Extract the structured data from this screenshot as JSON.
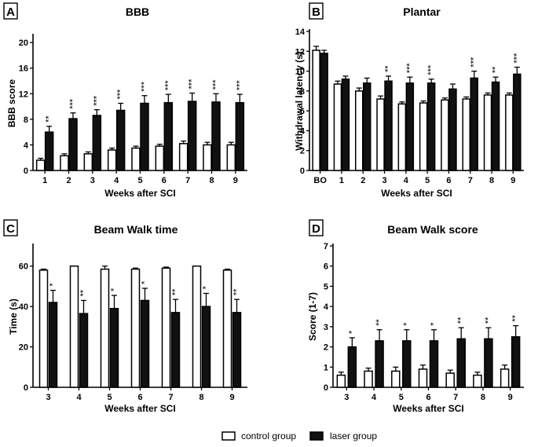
{
  "legend": {
    "control_label": "control group",
    "laser_label": "laser group"
  },
  "colors": {
    "control_fill": "#ffffff",
    "laser_fill": "#111111",
    "stroke": "#000000"
  },
  "chart_data": [
    {
      "panel": "A",
      "type": "bar",
      "title": "BBB",
      "xlabel": "Weeks after SCI",
      "ylabel": "BBB score",
      "ylim": [
        0,
        21
      ],
      "yticks": [
        0,
        4,
        8,
        12,
        16,
        20
      ],
      "categories": [
        "1",
        "2",
        "3",
        "4",
        "5",
        "6",
        "7",
        "8",
        "9"
      ],
      "series": [
        {
          "name": "control group",
          "values": [
            1.6,
            2.3,
            2.6,
            3.2,
            3.5,
            3.8,
            4.2,
            4.0,
            4.0
          ],
          "errors": [
            0.3,
            0.3,
            0.3,
            0.3,
            0.3,
            0.3,
            0.4,
            0.4,
            0.4
          ]
        },
        {
          "name": "laser group",
          "values": [
            6.0,
            8.1,
            8.6,
            9.4,
            10.5,
            10.6,
            10.8,
            10.7,
            10.6
          ],
          "errors": [
            0.9,
            0.9,
            0.9,
            1.1,
            1.2,
            1.3,
            1.3,
            1.3,
            1.3
          ]
        }
      ],
      "significance": [
        "**",
        "***",
        "***",
        "***",
        "***",
        "***",
        "***",
        "***",
        "***"
      ]
    },
    {
      "panel": "B",
      "type": "bar",
      "title": "Plantar",
      "xlabel": "Weeks after SCI",
      "ylabel": "Withdrawal latency (s)",
      "ylim": [
        0,
        14
      ],
      "yticks": [
        0,
        2,
        4,
        6,
        8,
        10,
        12,
        14
      ],
      "categories": [
        "BO",
        "1",
        "2",
        "3",
        "4",
        "5",
        "6",
        "7",
        "8",
        "9"
      ],
      "series": [
        {
          "name": "control group",
          "values": [
            12.1,
            8.7,
            8.0,
            7.2,
            6.7,
            6.8,
            7.1,
            7.2,
            7.6,
            7.6
          ],
          "errors": [
            0.4,
            0.3,
            0.3,
            0.3,
            0.2,
            0.2,
            0.2,
            0.2,
            0.2,
            0.2
          ]
        },
        {
          "name": "laser group",
          "values": [
            11.8,
            9.2,
            8.8,
            9.0,
            8.8,
            8.8,
            8.2,
            9.3,
            8.9,
            9.7
          ],
          "errors": [
            0.3,
            0.3,
            0.5,
            0.5,
            0.6,
            0.4,
            0.5,
            0.7,
            0.5,
            0.7
          ]
        }
      ],
      "significance": [
        "",
        "",
        "",
        "**",
        "***",
        "***",
        "",
        "***",
        "**",
        "***"
      ]
    },
    {
      "panel": "C",
      "type": "bar",
      "title": "Beam Walk time",
      "xlabel": "Weeks after SCI",
      "ylabel": "Time (s)",
      "ylim": [
        0,
        70
      ],
      "yticks": [
        0,
        20,
        40,
        60
      ],
      "categories": [
        "3",
        "4",
        "5",
        "6",
        "7",
        "8",
        "9"
      ],
      "series": [
        {
          "name": "control group",
          "values": [
            58,
            60,
            58.5,
            58.5,
            59,
            60,
            58
          ],
          "errors": [
            0.5,
            0,
            1.5,
            0.5,
            0.5,
            0,
            0.5
          ]
        },
        {
          "name": "laser group",
          "values": [
            42,
            36.5,
            39,
            43,
            37,
            40,
            37
          ],
          "errors": [
            6,
            6.5,
            6.5,
            6,
            6.5,
            6.5,
            6.5
          ]
        }
      ],
      "significance": [
        "*",
        "**",
        "*",
        "*",
        "**",
        "*",
        "**"
      ]
    },
    {
      "panel": "D",
      "type": "bar",
      "title": "Beam Walk score",
      "xlabel": "Weeks after SCI",
      "ylabel": "Score (1-7)",
      "ylim": [
        0,
        7
      ],
      "yticks": [
        0,
        1,
        2,
        3,
        4,
        5,
        6,
        7
      ],
      "categories": [
        "3",
        "4",
        "5",
        "6",
        "7",
        "8",
        "9"
      ],
      "series": [
        {
          "name": "control group",
          "values": [
            0.6,
            0.8,
            0.8,
            0.9,
            0.7,
            0.6,
            0.9
          ],
          "errors": [
            0.15,
            0.15,
            0.2,
            0.2,
            0.15,
            0.15,
            0.2
          ]
        },
        {
          "name": "laser group",
          "values": [
            2.0,
            2.3,
            2.3,
            2.3,
            2.4,
            2.4,
            2.5
          ],
          "errors": [
            0.45,
            0.55,
            0.55,
            0.55,
            0.55,
            0.55,
            0.55
          ]
        }
      ],
      "significance": [
        "*",
        "**",
        "*",
        "*",
        "**",
        "**",
        "**"
      ]
    }
  ]
}
